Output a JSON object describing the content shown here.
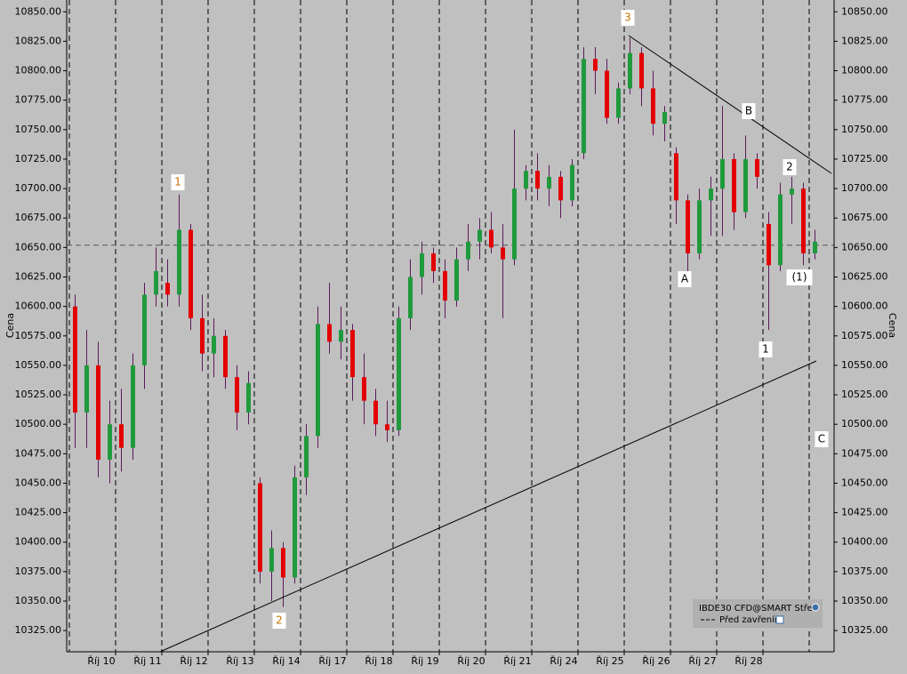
{
  "chart_data": {
    "type": "candlestick",
    "y_axis_label": "Cena",
    "ylim": [
      10307,
      10860
    ],
    "yticks": [
      {
        "value": 10850,
        "label": "10850.00"
      },
      {
        "value": 10825,
        "label": "10825.00"
      },
      {
        "value": 10800,
        "label": "10800.00"
      },
      {
        "value": 10775,
        "label": "10775.00"
      },
      {
        "value": 10750,
        "label": "10750.00"
      },
      {
        "value": 10725,
        "label": "10725.00"
      },
      {
        "value": 10700,
        "label": "10700.00"
      },
      {
        "value": 10675,
        "label": "10675.00"
      },
      {
        "value": 10650,
        "label": "10650.00"
      },
      {
        "value": 10625,
        "label": "10625.00"
      },
      {
        "value": 10600,
        "label": "10600.00"
      },
      {
        "value": 10575,
        "label": "10575.00"
      },
      {
        "value": 10550,
        "label": "10550.00"
      },
      {
        "value": 10525,
        "label": "10525.00"
      },
      {
        "value": 10500,
        "label": "10500.00"
      },
      {
        "value": 10475,
        "label": "10475.00"
      },
      {
        "value": 10450,
        "label": "10450.00"
      },
      {
        "value": 10425,
        "label": "10425.00"
      },
      {
        "value": 10400,
        "label": "10400.00"
      },
      {
        "value": 10375,
        "label": "10375.00"
      },
      {
        "value": 10350,
        "label": "10350.00"
      },
      {
        "value": 10325,
        "label": "10325.00"
      }
    ],
    "day_labels": [
      null,
      "Říj 10",
      "Říj 11",
      "Říj 12",
      "Říj 13",
      "Říj 14",
      "Říj 17",
      "Říj 18",
      "Říj 19",
      "Říj 20",
      "Říj 21",
      "Říj 24",
      "Říj 25",
      "Říj 26",
      "Říj 27",
      "Říj 28",
      null
    ],
    "open": [
      10600,
      10510,
      10550,
      10470,
      10500,
      10480,
      10550,
      10610,
      10620,
      10610,
      10665,
      10590,
      10560,
      10575,
      10540,
      10510,
      10450,
      10375,
      10395,
      10370,
      10455,
      10490,
      10585,
      10570,
      10580,
      10540,
      10520,
      10500,
      10495,
      10590,
      10625,
      10645,
      10630,
      10605,
      10640,
      10655,
      10665,
      10650,
      10640,
      10700,
      10715,
      10700,
      10710,
      10690,
      10730,
      10810,
      10800,
      10760,
      10785,
      10815,
      10785,
      10755,
      10730,
      10690,
      10645,
      10690,
      10700,
      10725,
      10680,
      10725,
      10670,
      10635,
      10695,
      10700,
      10645
    ],
    "high": [
      10610,
      10580,
      10570,
      10520,
      10530,
      10560,
      10620,
      10650,
      10640,
      10695,
      10670,
      10610,
      10590,
      10580,
      10550,
      10545,
      10455,
      10410,
      10400,
      10465,
      10500,
      10600,
      10620,
      10600,
      10585,
      10560,
      10530,
      10520,
      10600,
      10640,
      10655,
      10650,
      10640,
      10650,
      10670,
      10675,
      10680,
      10670,
      10750,
      10720,
      10730,
      10720,
      10715,
      10725,
      10820,
      10820,
      10810,
      10790,
      10828,
      10820,
      10800,
      10770,
      10735,
      10695,
      10700,
      10710,
      10770,
      10730,
      10745,
      10730,
      10680,
      10705,
      10710,
      10705,
      10665
    ],
    "low": [
      10480,
      10480,
      10455,
      10450,
      10460,
      10470,
      10530,
      10600,
      10600,
      10600,
      10580,
      10545,
      10540,
      10530,
      10495,
      10500,
      10365,
      10350,
      10345,
      10365,
      10440,
      10480,
      10560,
      10555,
      10520,
      10500,
      10490,
      10485,
      10490,
      10580,
      10610,
      10620,
      10590,
      10600,
      10630,
      10640,
      10645,
      10590,
      10635,
      10690,
      10690,
      10685,
      10675,
      10685,
      10725,
      10780,
      10755,
      10755,
      10780,
      10770,
      10745,
      10740,
      10670,
      10630,
      10640,
      10660,
      10660,
      10665,
      10675,
      10700,
      10580,
      10630,
      10670,
      10635,
      10640
    ],
    "close": [
      10510,
      10550,
      10470,
      10500,
      10480,
      10550,
      10610,
      10630,
      10610,
      10665,
      10590,
      10560,
      10575,
      10540,
      10510,
      10535,
      10375,
      10395,
      10370,
      10455,
      10490,
      10585,
      10570,
      10580,
      10540,
      10520,
      10500,
      10495,
      10590,
      10625,
      10645,
      10630,
      10605,
      10640,
      10655,
      10665,
      10650,
      10640,
      10700,
      10715,
      10700,
      10710,
      10690,
      10720,
      10810,
      10800,
      10760,
      10785,
      10815,
      10785,
      10755,
      10765,
      10690,
      10645,
      10690,
      10700,
      10725,
      10680,
      10725,
      10710,
      10635,
      10695,
      10700,
      10645,
      10655
    ],
    "up_color": "#1f9a3c",
    "down_color": "#e40000",
    "last_price": 10652,
    "annotations": [
      {
        "text": "1",
        "color": "#c87000"
      },
      {
        "text": "2",
        "color": "#c87000"
      },
      {
        "text": "3",
        "color": "#c87000"
      },
      {
        "text": "A",
        "color": "#000000"
      },
      {
        "text": "B",
        "color": "#000000"
      },
      {
        "text": "C",
        "color": "#000000"
      },
      {
        "text": "1",
        "color": "#000000"
      },
      {
        "text": "2",
        "color": "#000000"
      },
      {
        "text": "(1)",
        "color": "#000000"
      }
    ],
    "legend": {
      "instrument": "IBDE30 CFD@SMART Střed",
      "line": "Před zavřením"
    }
  }
}
